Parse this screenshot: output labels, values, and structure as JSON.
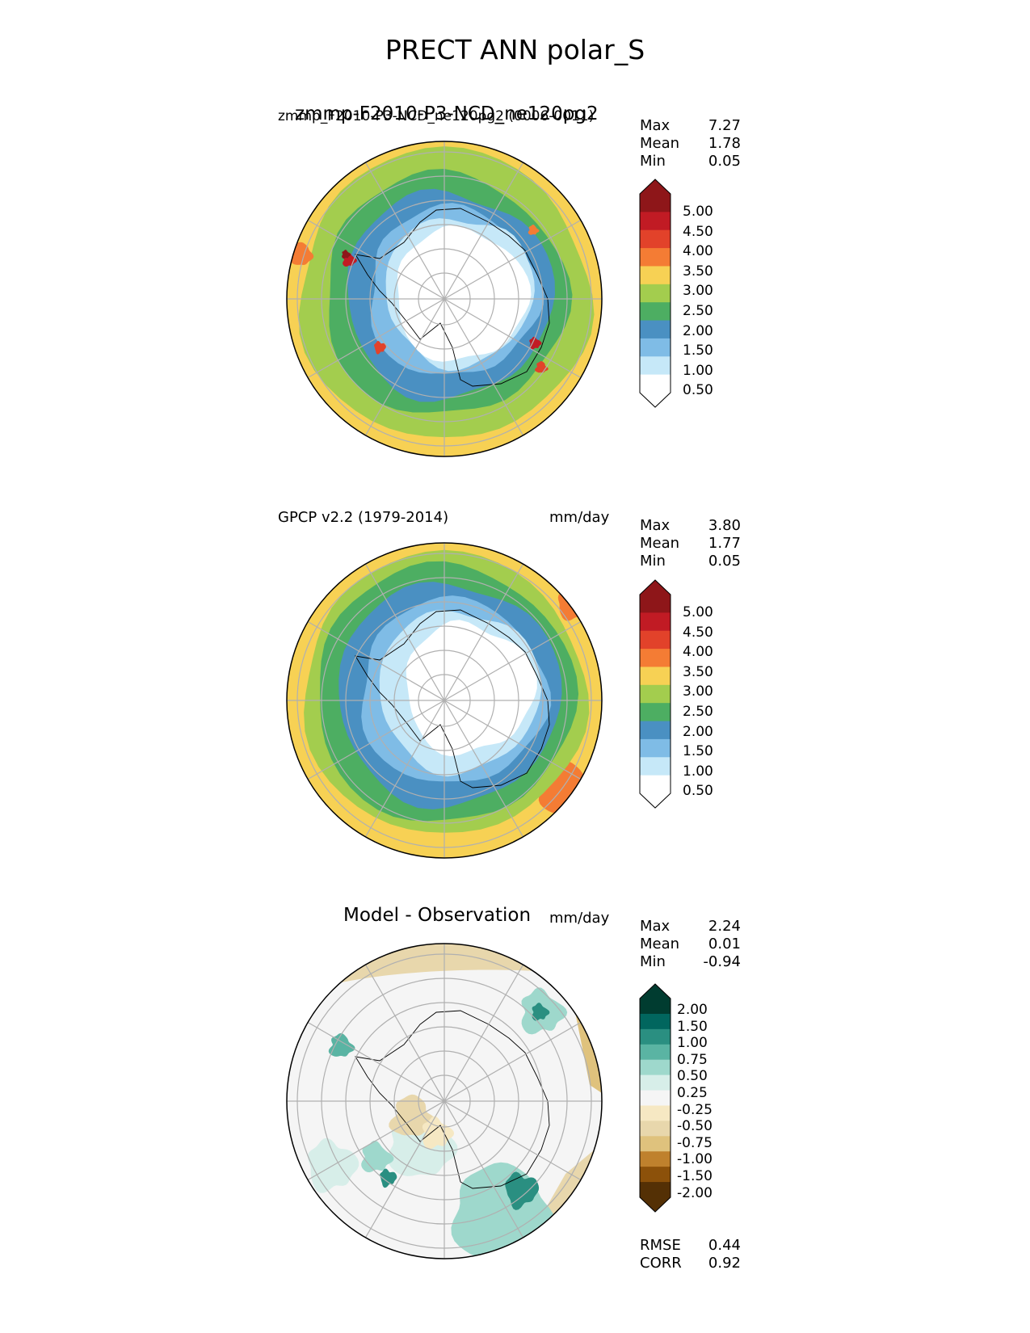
{
  "title": "PRECT ANN polar_S",
  "colors": {
    "precip": [
      "#ffffff",
      "#c6e8f8",
      "#7fbce6",
      "#4a90c2",
      "#4dae62",
      "#a3cd4e",
      "#f7d154",
      "#f47c34",
      "#e2422a",
      "#c11b24",
      "#8e1619"
    ],
    "diff": [
      "#543005",
      "#8c510a",
      "#bf812d",
      "#dfc27d",
      "#e8d7ac",
      "#f6e8c3",
      "#f5f5f5",
      "#d7eee9",
      "#9ed8cc",
      "#5ab4a3",
      "#2a8f81",
      "#01665e",
      "#003c30"
    ]
  },
  "panels": [
    {
      "id": "model",
      "title_left": "zmmp_F2010-P3-NCD_ne120pg2 (0006-0011)",
      "title_center": "zmmp-F2010-P3-NCD_ne120pg2",
      "units": "",
      "stats": [
        {
          "label": "Max",
          "value": "7.27"
        },
        {
          "label": "Mean",
          "value": "1.78"
        },
        {
          "label": "Min",
          "value": "0.05"
        }
      ],
      "colorbar": [
        "5.00",
        "4.50",
        "4.00",
        "3.50",
        "3.00",
        "2.50",
        "2.00",
        "1.50",
        "1.00",
        "0.50"
      ]
    },
    {
      "id": "obs",
      "title_left": "GPCP v2.2 (1979-2014)",
      "title_center": "",
      "units": "mm/day",
      "stats": [
        {
          "label": "Max",
          "value": "3.80"
        },
        {
          "label": "Mean",
          "value": "1.77"
        },
        {
          "label": "Min",
          "value": "0.05"
        }
      ],
      "colorbar": [
        "5.00",
        "4.50",
        "4.00",
        "3.50",
        "3.00",
        "2.50",
        "2.00",
        "1.50",
        "1.00",
        "0.50"
      ]
    },
    {
      "id": "diff",
      "title_left": "",
      "title_center": "Model - Observation",
      "units": "mm/day",
      "stats": [
        {
          "label": "Max",
          "value": "2.24"
        },
        {
          "label": "Mean",
          "value": "0.01"
        },
        {
          "label": "Min",
          "value": "-0.94"
        }
      ],
      "colorbar": [
        "2.00",
        "1.50",
        "1.00",
        "0.75",
        "0.50",
        "0.25",
        "-0.25",
        "-0.50",
        "-0.75",
        "-1.00",
        "-1.50",
        "-2.00"
      ],
      "metrics": [
        {
          "label": "RMSE",
          "value": "0.44"
        },
        {
          "label": "CORR",
          "value": "0.92"
        }
      ]
    }
  ],
  "chart_data": [
    {
      "type": "heatmap",
      "projection": "south polar stereographic",
      "title": "zmmp-F2010-P3-NCD_ne120pg2",
      "variable": "PRECT",
      "season": "ANN",
      "units": "mm/day",
      "levels": [
        0.5,
        1.0,
        1.5,
        2.0,
        2.5,
        3.0,
        3.5,
        4.0,
        4.5,
        5.0
      ],
      "stats": {
        "max": 7.27,
        "mean": 1.78,
        "min": 0.05
      },
      "grid": true
    },
    {
      "type": "heatmap",
      "projection": "south polar stereographic",
      "title": "GPCP v2.2 (1979-2014)",
      "variable": "PRECT",
      "season": "ANN",
      "units": "mm/day",
      "levels": [
        0.5,
        1.0,
        1.5,
        2.0,
        2.5,
        3.0,
        3.5,
        4.0,
        4.5,
        5.0
      ],
      "stats": {
        "max": 3.8,
        "mean": 1.77,
        "min": 0.05
      },
      "grid": true
    },
    {
      "type": "heatmap",
      "projection": "south polar stereographic",
      "title": "Model - Observation",
      "units": "mm/day",
      "levels": [
        -2.0,
        -1.5,
        -1.0,
        -0.75,
        -0.5,
        -0.25,
        0.25,
        0.5,
        0.75,
        1.0,
        1.5,
        2.0
      ],
      "stats": {
        "max": 2.24,
        "mean": 0.01,
        "min": -0.94,
        "rmse": 0.44,
        "corr": 0.92
      },
      "grid": true
    }
  ]
}
